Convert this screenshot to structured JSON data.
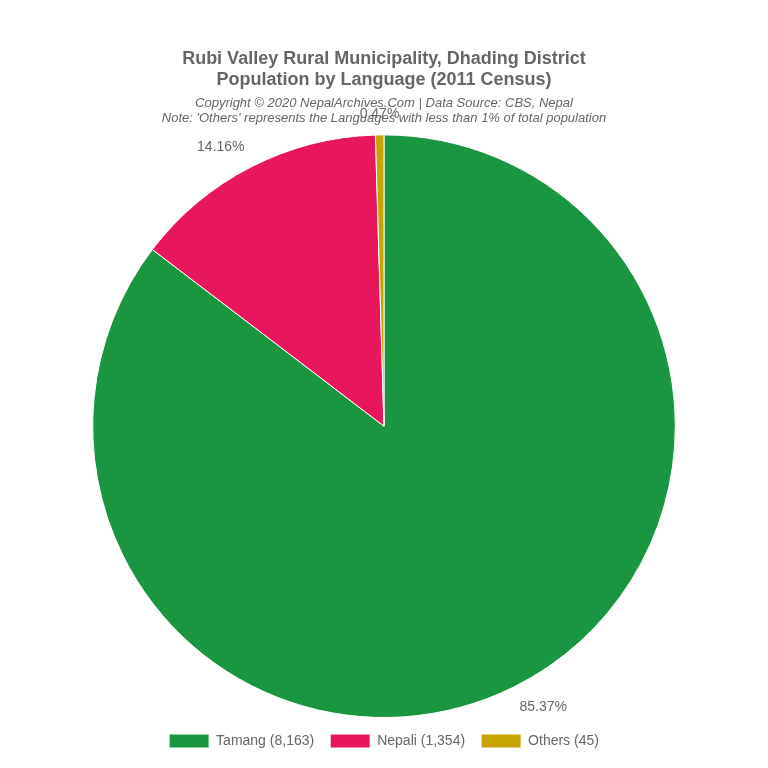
{
  "chart_data": {
    "type": "pie",
    "title": "Rubi Valley Rural Municipality, Dhading District",
    "subtitle": "Population by Language (2011 Census)",
    "annotations": [
      "Copyright © 2020 NepalArchives.Com | Data Source: CBS, Nepal",
      "Note: 'Others' represents the Languages with less than 1% of total population"
    ],
    "categories": [
      "Tamang (8,163)",
      "Nepali (1,354)",
      "Others (45)"
    ],
    "values": [
      85.37,
      14.16,
      0.47
    ],
    "value_labels": [
      "85.37%",
      "14.16%",
      "0.47%"
    ],
    "colors": [
      "#1a9641",
      "#e8175d",
      "#c8a400"
    ],
    "data_labels": true,
    "legend": "bottom"
  }
}
